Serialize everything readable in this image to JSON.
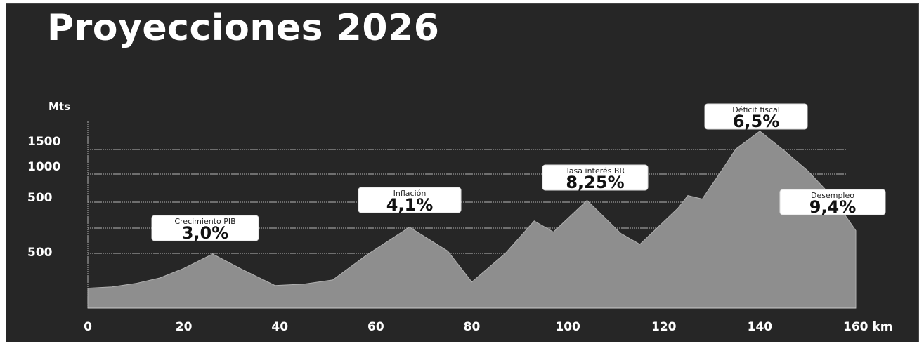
{
  "title": "Proyecciones 2026",
  "chart_data": {
    "type": "area",
    "title": "Proyecciones 2026",
    "xlabel": "km",
    "ylabel": "Mts",
    "x_ticks": [
      "0",
      "20",
      "40",
      "60",
      "80",
      "100",
      "120",
      "140",
      "160 km"
    ],
    "y_ticks": [
      "1500",
      "1000",
      "500",
      "500"
    ],
    "xlim": [
      0,
      160
    ],
    "grid": true,
    "x": [
      0,
      5,
      10,
      15,
      20,
      26,
      32,
      39,
      45,
      51,
      58,
      67,
      75,
      80,
      87,
      93,
      97,
      104,
      111,
      115,
      123,
      125,
      128,
      132,
      135,
      140,
      145,
      150,
      155,
      160
    ],
    "y": [
      290,
      310,
      360,
      440,
      580,
      790,
      570,
      330,
      350,
      410,
      770,
      1180,
      830,
      380,
      800,
      1270,
      1110,
      1570,
      1090,
      930,
      1460,
      1640,
      1590,
      2000,
      2320,
      2580,
      2300,
      2000,
      1630,
      1130
    ],
    "series": [
      {
        "values": [
          290,
          310,
          360,
          440,
          580,
          790,
          570,
          330,
          350,
          410,
          770,
          1180,
          830,
          380,
          800,
          1270,
          1110,
          1570,
          1090,
          930,
          1460,
          1640,
          1590,
          2000,
          2320,
          2580,
          2300,
          2000,
          1630,
          1130
        ]
      }
    ],
    "colors": {
      "fill": "#8e8e8e",
      "grid": "#9a9a9a",
      "background": "#262626",
      "text": "#ffffff"
    },
    "annotations": [
      {
        "label": "Crecimiento PIB",
        "value": "3,0%",
        "x": 26
      },
      {
        "label": "Inflación",
        "value": "4,1%",
        "x": 67
      },
      {
        "label": "Tasa interés BR",
        "value": "8,25%",
        "x": 104
      },
      {
        "label": "Déficit fiscal",
        "value": "6,5%",
        "x": 140
      },
      {
        "label": "Desempleo",
        "value": "9,4%",
        "x": 157
      }
    ]
  }
}
